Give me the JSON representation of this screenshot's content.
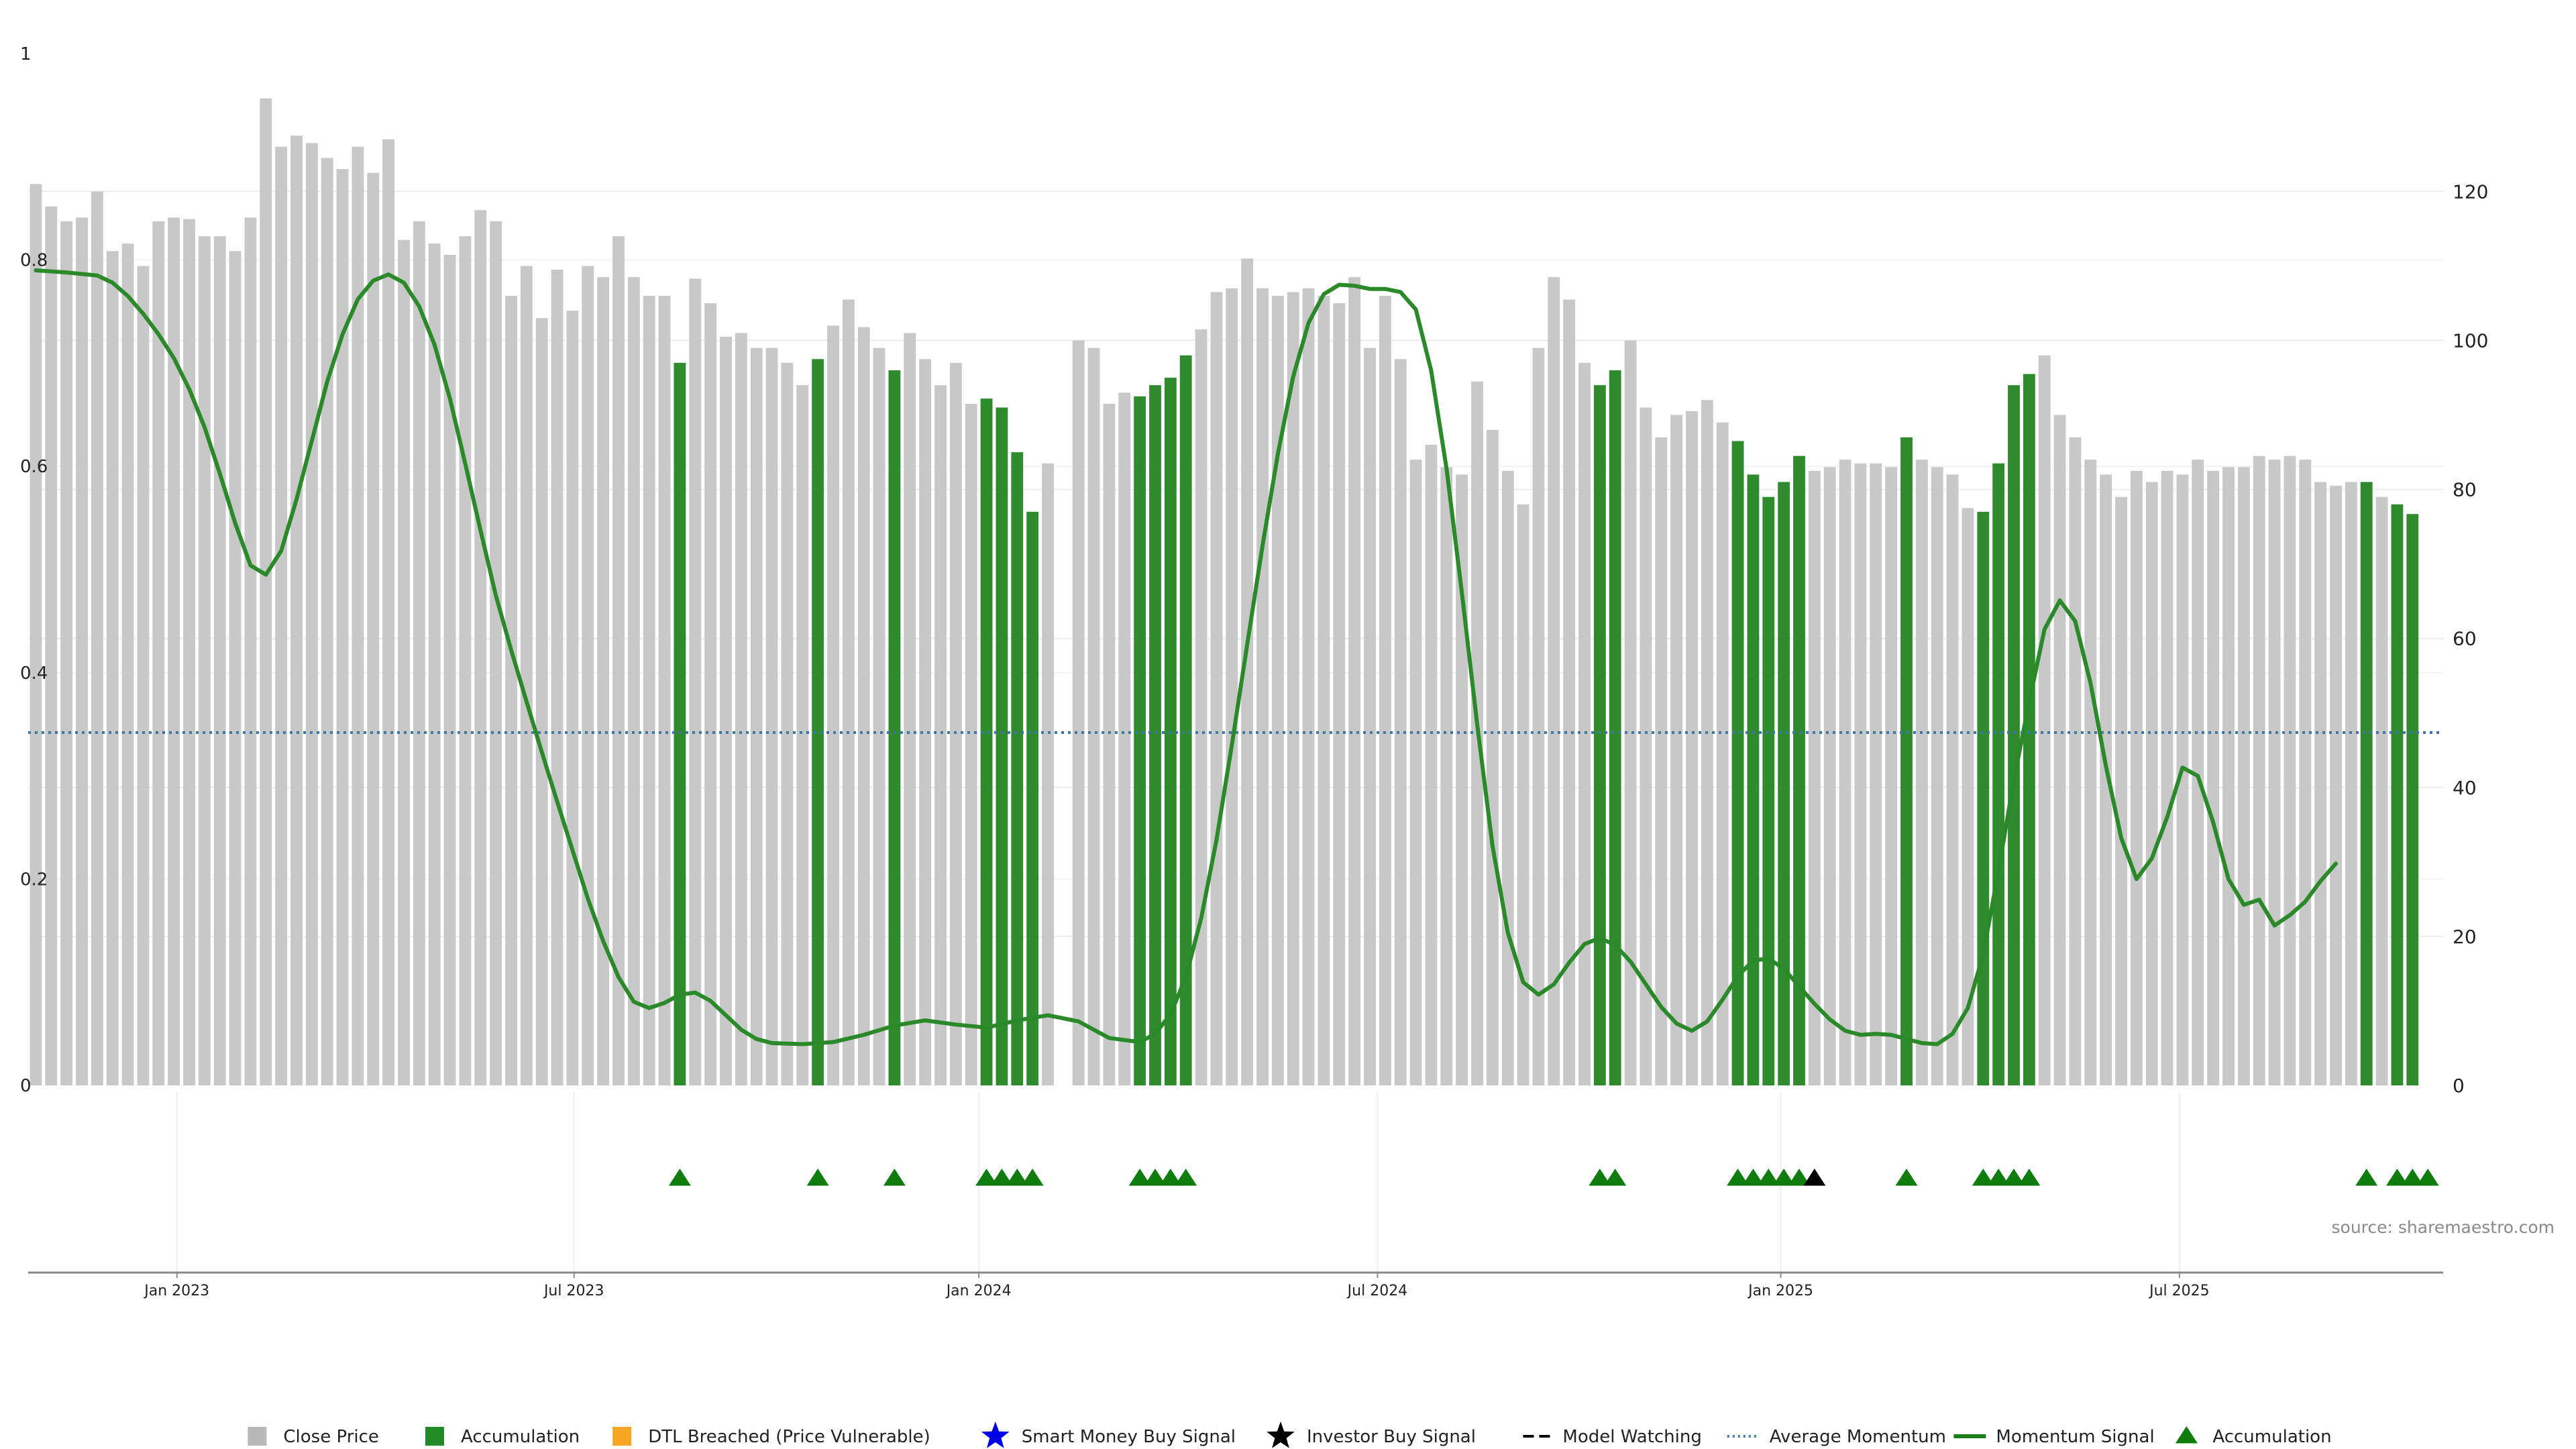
{
  "chart_data": {
    "type": "bar",
    "source_text": "source: sharemaestro.com",
    "left_axis": {
      "ticks": [
        "0",
        "0.2",
        "0.4",
        "0.6",
        "0.8",
        "1"
      ],
      "range": [
        0,
        1
      ]
    },
    "right_axis": {
      "ticks": [
        "0",
        "20",
        "40",
        "60",
        "80",
        "100",
        "120"
      ],
      "range": [
        0,
        138.5
      ]
    },
    "x_ticks": [
      {
        "label": "Jan 2023",
        "week": 9.2
      },
      {
        "label": "Jul 2023",
        "week": 35.1
      },
      {
        "label": "Jan 2024",
        "week": 61.5
      },
      {
        "label": "Jul 2024",
        "week": 87.5
      },
      {
        "label": "Jan 2025",
        "week": 113.8
      },
      {
        "label": "Jul 2025",
        "week": 139.8
      }
    ],
    "x_range": [
      -0.5,
      157
    ],
    "close_price": [
      121,
      118,
      116,
      116.5,
      120,
      112,
      113,
      110,
      116,
      116.5,
      116.3,
      114,
      114,
      112,
      116.5,
      132.5,
      126,
      127.5,
      126.5,
      124.5,
      123,
      126,
      122.5,
      127,
      113.5,
      116,
      113,
      111.5,
      114,
      117.5,
      116,
      106,
      110,
      103,
      109.5,
      104,
      110,
      108.5,
      114,
      108.5,
      106,
      106,
      97,
      108.3,
      105,
      100.5,
      101,
      99,
      99,
      97,
      94,
      97.5,
      102,
      105.5,
      101.8,
      99,
      96,
      101,
      97.5,
      94,
      97,
      91.5,
      92.2,
      91,
      85,
      77,
      83.5,
      null,
      100,
      99,
      91.5,
      93,
      92.5,
      94,
      95,
      98,
      101.5,
      106.5,
      107,
      111,
      107,
      106,
      106.5,
      107,
      106,
      105,
      108.5,
      99,
      106,
      97.5,
      84,
      86,
      83,
      82,
      94.5,
      88,
      82.5,
      78,
      99,
      108.5,
      105.5,
      97,
      94,
      96,
      100,
      91,
      87,
      90,
      90.5,
      92,
      89,
      86.5,
      82,
      79,
      81,
      84.5,
      82.5,
      83,
      84,
      83.5,
      83.5,
      83,
      87,
      84,
      83,
      82,
      77.5,
      77,
      83.5,
      94,
      95.5,
      98,
      90,
      87,
      84,
      82,
      79,
      82.5,
      81,
      82.5,
      82,
      84,
      82.5,
      83,
      83,
      84.5,
      84,
      84.5,
      84,
      81,
      80.5,
      81,
      81,
      79,
      78,
      76.7
    ],
    "accumulation_weeks": [
      42,
      51,
      56,
      62,
      63,
      64,
      65,
      72,
      73,
      74,
      75,
      102,
      103,
      111,
      112,
      113,
      114,
      115,
      122,
      127,
      128,
      129,
      130,
      152,
      154,
      155,
      156
    ],
    "investor_buy_signal_weeks": [
      116
    ],
    "momentum_signal": [
      [
        0,
        0.79
      ],
      [
        2,
        0.788
      ],
      [
        4,
        0.785
      ],
      [
        5,
        0.778
      ],
      [
        6,
        0.765
      ],
      [
        7,
        0.748
      ],
      [
        8,
        0.728
      ],
      [
        9,
        0.705
      ],
      [
        10,
        0.675
      ],
      [
        11,
        0.638
      ],
      [
        12,
        0.593
      ],
      [
        13,
        0.545
      ],
      [
        14,
        0.504
      ],
      [
        15,
        0.495
      ],
      [
        16,
        0.518
      ],
      [
        17,
        0.568
      ],
      [
        18,
        0.625
      ],
      [
        19,
        0.682
      ],
      [
        20,
        0.728
      ],
      [
        21,
        0.762
      ],
      [
        22,
        0.78
      ],
      [
        23,
        0.786
      ],
      [
        24,
        0.778
      ],
      [
        25,
        0.755
      ],
      [
        26,
        0.718
      ],
      [
        27,
        0.666
      ],
      [
        28,
        0.603
      ],
      [
        29,
        0.538
      ],
      [
        30,
        0.475
      ],
      [
        31,
        0.422
      ],
      [
        32,
        0.372
      ],
      [
        33,
        0.323
      ],
      [
        34,
        0.275
      ],
      [
        35,
        0.228
      ],
      [
        36,
        0.181
      ],
      [
        37,
        0.14
      ],
      [
        38,
        0.105
      ],
      [
        39,
        0.081
      ],
      [
        40,
        0.075
      ],
      [
        41,
        0.08
      ],
      [
        42,
        0.088
      ],
      [
        43,
        0.09
      ],
      [
        44,
        0.082
      ],
      [
        45,
        0.068
      ],
      [
        46,
        0.054
      ],
      [
        47,
        0.045
      ],
      [
        48,
        0.041
      ],
      [
        50,
        0.04
      ],
      [
        52,
        0.042
      ],
      [
        54,
        0.049
      ],
      [
        56,
        0.058
      ],
      [
        58,
        0.063
      ],
      [
        60,
        0.059
      ],
      [
        62,
        0.056
      ],
      [
        64,
        0.063
      ],
      [
        66,
        0.068
      ],
      [
        68,
        0.062
      ],
      [
        70,
        0.046
      ],
      [
        72,
        0.042
      ],
      [
        73,
        0.05
      ],
      [
        74,
        0.069
      ],
      [
        75,
        0.105
      ],
      [
        76,
        0.162
      ],
      [
        77,
        0.238
      ],
      [
        78,
        0.33
      ],
      [
        79,
        0.427
      ],
      [
        80,
        0.523
      ],
      [
        81,
        0.612
      ],
      [
        82,
        0.687
      ],
      [
        83,
        0.739
      ],
      [
        84,
        0.767
      ],
      [
        85,
        0.776
      ],
      [
        86,
        0.775
      ],
      [
        87,
        0.772
      ],
      [
        88,
        0.772
      ],
      [
        89,
        0.769
      ],
      [
        90,
        0.752
      ],
      [
        91,
        0.693
      ],
      [
        92,
        0.598
      ],
      [
        93,
        0.478
      ],
      [
        94,
        0.35
      ],
      [
        95,
        0.232
      ],
      [
        96,
        0.148
      ],
      [
        97,
        0.1
      ],
      [
        98,
        0.088
      ],
      [
        99,
        0.098
      ],
      [
        100,
        0.119
      ],
      [
        101,
        0.137
      ],
      [
        102,
        0.143
      ],
      [
        103,
        0.136
      ],
      [
        104,
        0.12
      ],
      [
        105,
        0.098
      ],
      [
        106,
        0.076
      ],
      [
        107,
        0.06
      ],
      [
        108,
        0.053
      ],
      [
        109,
        0.062
      ],
      [
        110,
        0.083
      ],
      [
        111,
        0.106
      ],
      [
        112,
        0.121
      ],
      [
        113,
        0.123
      ],
      [
        114,
        0.113
      ],
      [
        115,
        0.096
      ],
      [
        116,
        0.079
      ],
      [
        117,
        0.064
      ],
      [
        118,
        0.053
      ],
      [
        119,
        0.049
      ],
      [
        120,
        0.05
      ],
      [
        121,
        0.049
      ],
      [
        122,
        0.045
      ],
      [
        123,
        0.041
      ],
      [
        124,
        0.04
      ],
      [
        125,
        0.05
      ],
      [
        126,
        0.075
      ],
      [
        127,
        0.127
      ],
      [
        128,
        0.208
      ],
      [
        129,
        0.296
      ],
      [
        130,
        0.372
      ],
      [
        131,
        0.442
      ],
      [
        132,
        0.47
      ],
      [
        133,
        0.45
      ],
      [
        134,
        0.39
      ],
      [
        135,
        0.31
      ],
      [
        136,
        0.24
      ],
      [
        137,
        0.2
      ],
      [
        138,
        0.22
      ],
      [
        139,
        0.26
      ],
      [
        140,
        0.308
      ],
      [
        141,
        0.3
      ],
      [
        142,
        0.255
      ],
      [
        143,
        0.2
      ],
      [
        144,
        0.175
      ],
      [
        145,
        0.18
      ],
      [
        146,
        0.155
      ],
      [
        147,
        0.165
      ],
      [
        148,
        0.178
      ],
      [
        149,
        0.198
      ],
      [
        150,
        0.215
      ]
    ],
    "average_momentum": 0.342,
    "legend": [
      {
        "label": "Close Price",
        "symbol": "square",
        "color": "#b9b9b9"
      },
      {
        "label": "Accumulation",
        "symbol": "square",
        "color": "#1f8b24"
      },
      {
        "label": "DTL Breached (Price Vulnerable)",
        "symbol": "square",
        "color": "#f5a623"
      },
      {
        "label": "Smart Money Buy Signal",
        "symbol": "star",
        "color": "#0000e6"
      },
      {
        "label": "Investor Buy Signal",
        "symbol": "star",
        "color": "#000000"
      },
      {
        "label": "Model Watching",
        "symbol": "dash",
        "color": "#000000"
      },
      {
        "label": "Average Momentum",
        "symbol": "dotted",
        "color": "#4a78a8"
      },
      {
        "label": "Momentum Signal",
        "symbol": "line",
        "color": "#1a7f1a"
      },
      {
        "label": "Accumulation",
        "symbol": "triangle",
        "color": "#0e7d0e"
      }
    ],
    "colors": {
      "close_bar": "#c8c8c8",
      "accumulation_bar": "#2e8b2e",
      "momentum_line": "#2a8a2a",
      "average_line": "#3f74a6",
      "accumulation_marker": "#0e7d0e",
      "investor_marker": "#000000",
      "grid": "#ececec"
    }
  }
}
